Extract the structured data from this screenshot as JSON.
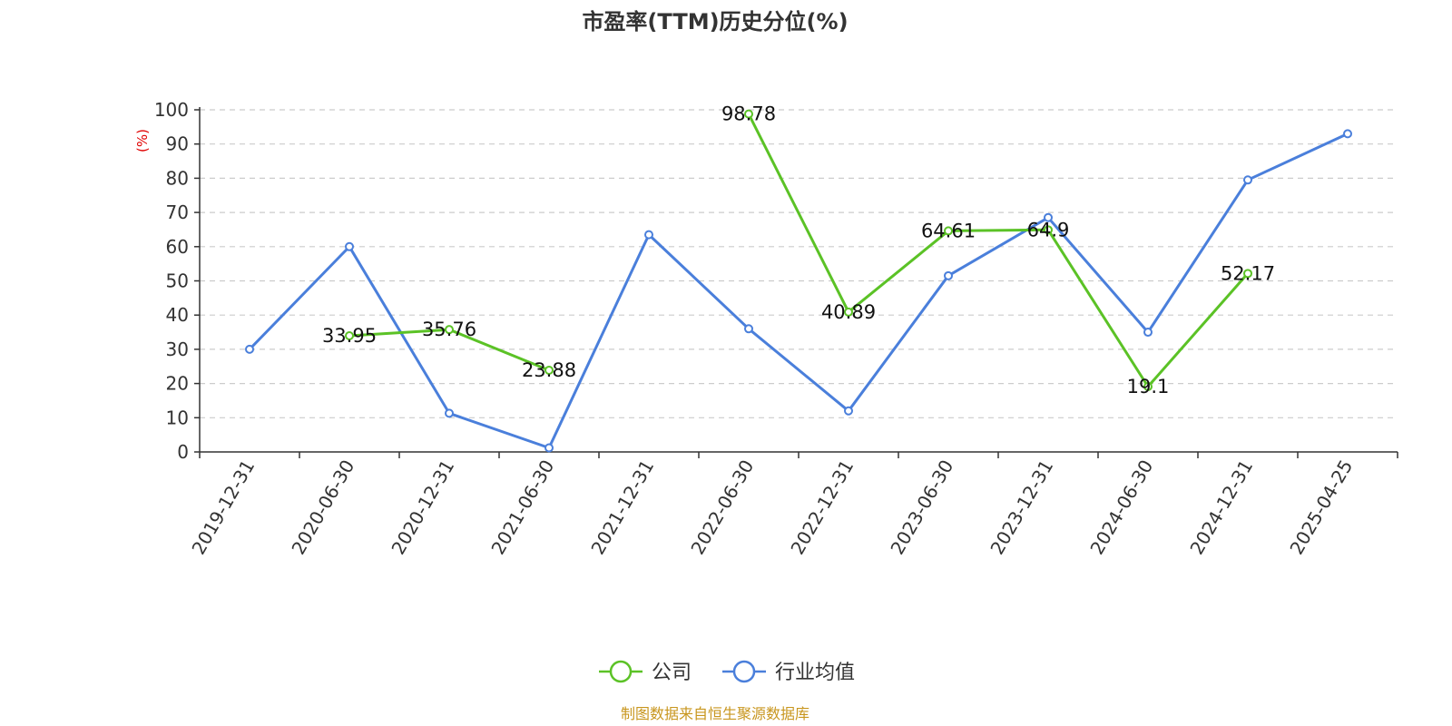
{
  "chart_data": {
    "type": "line",
    "title": "市盈率(TTM)历史分位(%)",
    "ylabel": "(%)",
    "ylim": [
      0,
      100
    ],
    "yticks": [
      0,
      10,
      20,
      30,
      40,
      50,
      60,
      70,
      80,
      90,
      100
    ],
    "grid": true,
    "legend_position": "bottom-center",
    "categories": [
      "2019-12-31",
      "2020-06-30",
      "2020-12-31",
      "2021-06-30",
      "2021-12-31",
      "2022-06-30",
      "2022-12-31",
      "2023-06-30",
      "2023-12-31",
      "2024-06-30",
      "2024-12-31",
      "2025-04-25"
    ],
    "series": [
      {
        "name": "公司",
        "color": "#5bc226",
        "show_labels": true,
        "values": [
          null,
          33.95,
          35.76,
          23.88,
          null,
          98.78,
          40.89,
          64.61,
          64.9,
          19.1,
          52.17,
          null
        ]
      },
      {
        "name": "行业均值",
        "color": "#4a7fdb",
        "show_labels": false,
        "values": [
          30,
          60,
          11.3,
          1.2,
          63.5,
          36,
          12,
          51.5,
          68.5,
          35,
          79.5,
          93
        ]
      }
    ],
    "source": "制图数据来自恒生聚源数据库"
  }
}
